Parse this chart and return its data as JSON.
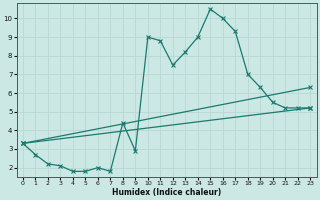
{
  "xlabel": "Humidex (Indice chaleur)",
  "ylabel": "",
  "bg_color": "#cce8e4",
  "line_color": "#1a7a6e",
  "grid_color": "#b8d8d4",
  "xlim": [
    -0.5,
    23.5
  ],
  "ylim": [
    1.5,
    10.8
  ],
  "xticks": [
    0,
    1,
    2,
    3,
    4,
    5,
    6,
    7,
    8,
    9,
    10,
    11,
    12,
    13,
    14,
    15,
    16,
    17,
    18,
    19,
    20,
    21,
    22,
    23
  ],
  "yticks": [
    2,
    3,
    4,
    5,
    6,
    7,
    8,
    9,
    10
  ],
  "curve1_x": [
    0,
    1,
    2,
    3,
    4,
    5,
    6,
    7,
    8,
    9,
    10,
    11,
    12,
    13,
    14,
    15,
    16,
    17,
    18,
    19,
    20,
    21,
    22,
    23
  ],
  "curve1_y": [
    3.3,
    2.7,
    2.2,
    2.1,
    1.8,
    1.8,
    2.0,
    1.8,
    4.4,
    2.9,
    9.0,
    8.8,
    7.5,
    8.2,
    9.0,
    10.5,
    10.0,
    9.3,
    7.0,
    6.3,
    5.5,
    5.2,
    5.2,
    5.2
  ],
  "curve2_x": [
    0,
    23
  ],
  "curve2_y": [
    3.3,
    6.3
  ],
  "curve3_x": [
    0,
    23
  ],
  "curve3_y": [
    3.3,
    5.2
  ],
  "figsize": [
    3.2,
    2.0
  ],
  "dpi": 100
}
